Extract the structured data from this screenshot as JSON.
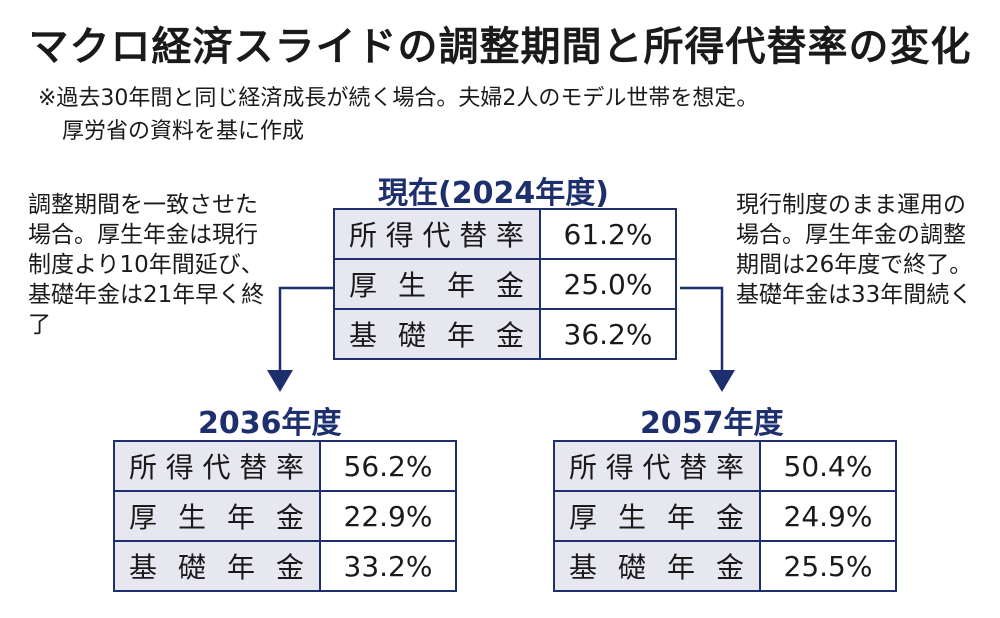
{
  "title": "マクロ経済スライドの調整期間と所得代替率の変化",
  "notes": [
    "※過去30年間と同じ経済成長が続く場合。夫婦2人のモデル世帯を想定。",
    "厚労省の資料を基に作成"
  ],
  "left_note": "調整期間を一致させた場合。厚生年金は現行制度より10年間延び、基礎年金は21年早く終了",
  "right_note": "現行制度のまま運用の場合。厚生年金の調整期間は26年度で終了。基礎年金は33年間続く",
  "colors": {
    "navy": "#1e2f6e",
    "label_bg": "#e7e7ef"
  },
  "current": {
    "header": "現在(2024年度)",
    "rows": [
      {
        "label": "所得代替率",
        "value": "61.2%"
      },
      {
        "label": "厚生年金",
        "value": "25.0%"
      },
      {
        "label": "基礎年金",
        "value": "36.2%"
      }
    ]
  },
  "y2036": {
    "header": "2036年度",
    "rows": [
      {
        "label": "所得代替率",
        "value": "56.2%"
      },
      {
        "label": "厚生年金",
        "value": "22.9%"
      },
      {
        "label": "基礎年金",
        "value": "33.2%"
      }
    ]
  },
  "y2057": {
    "header": "2057年度",
    "rows": [
      {
        "label": "所得代替率",
        "value": "50.4%"
      },
      {
        "label": "厚生年金",
        "value": "24.9%"
      },
      {
        "label": "基礎年金",
        "value": "25.5%"
      }
    ]
  }
}
